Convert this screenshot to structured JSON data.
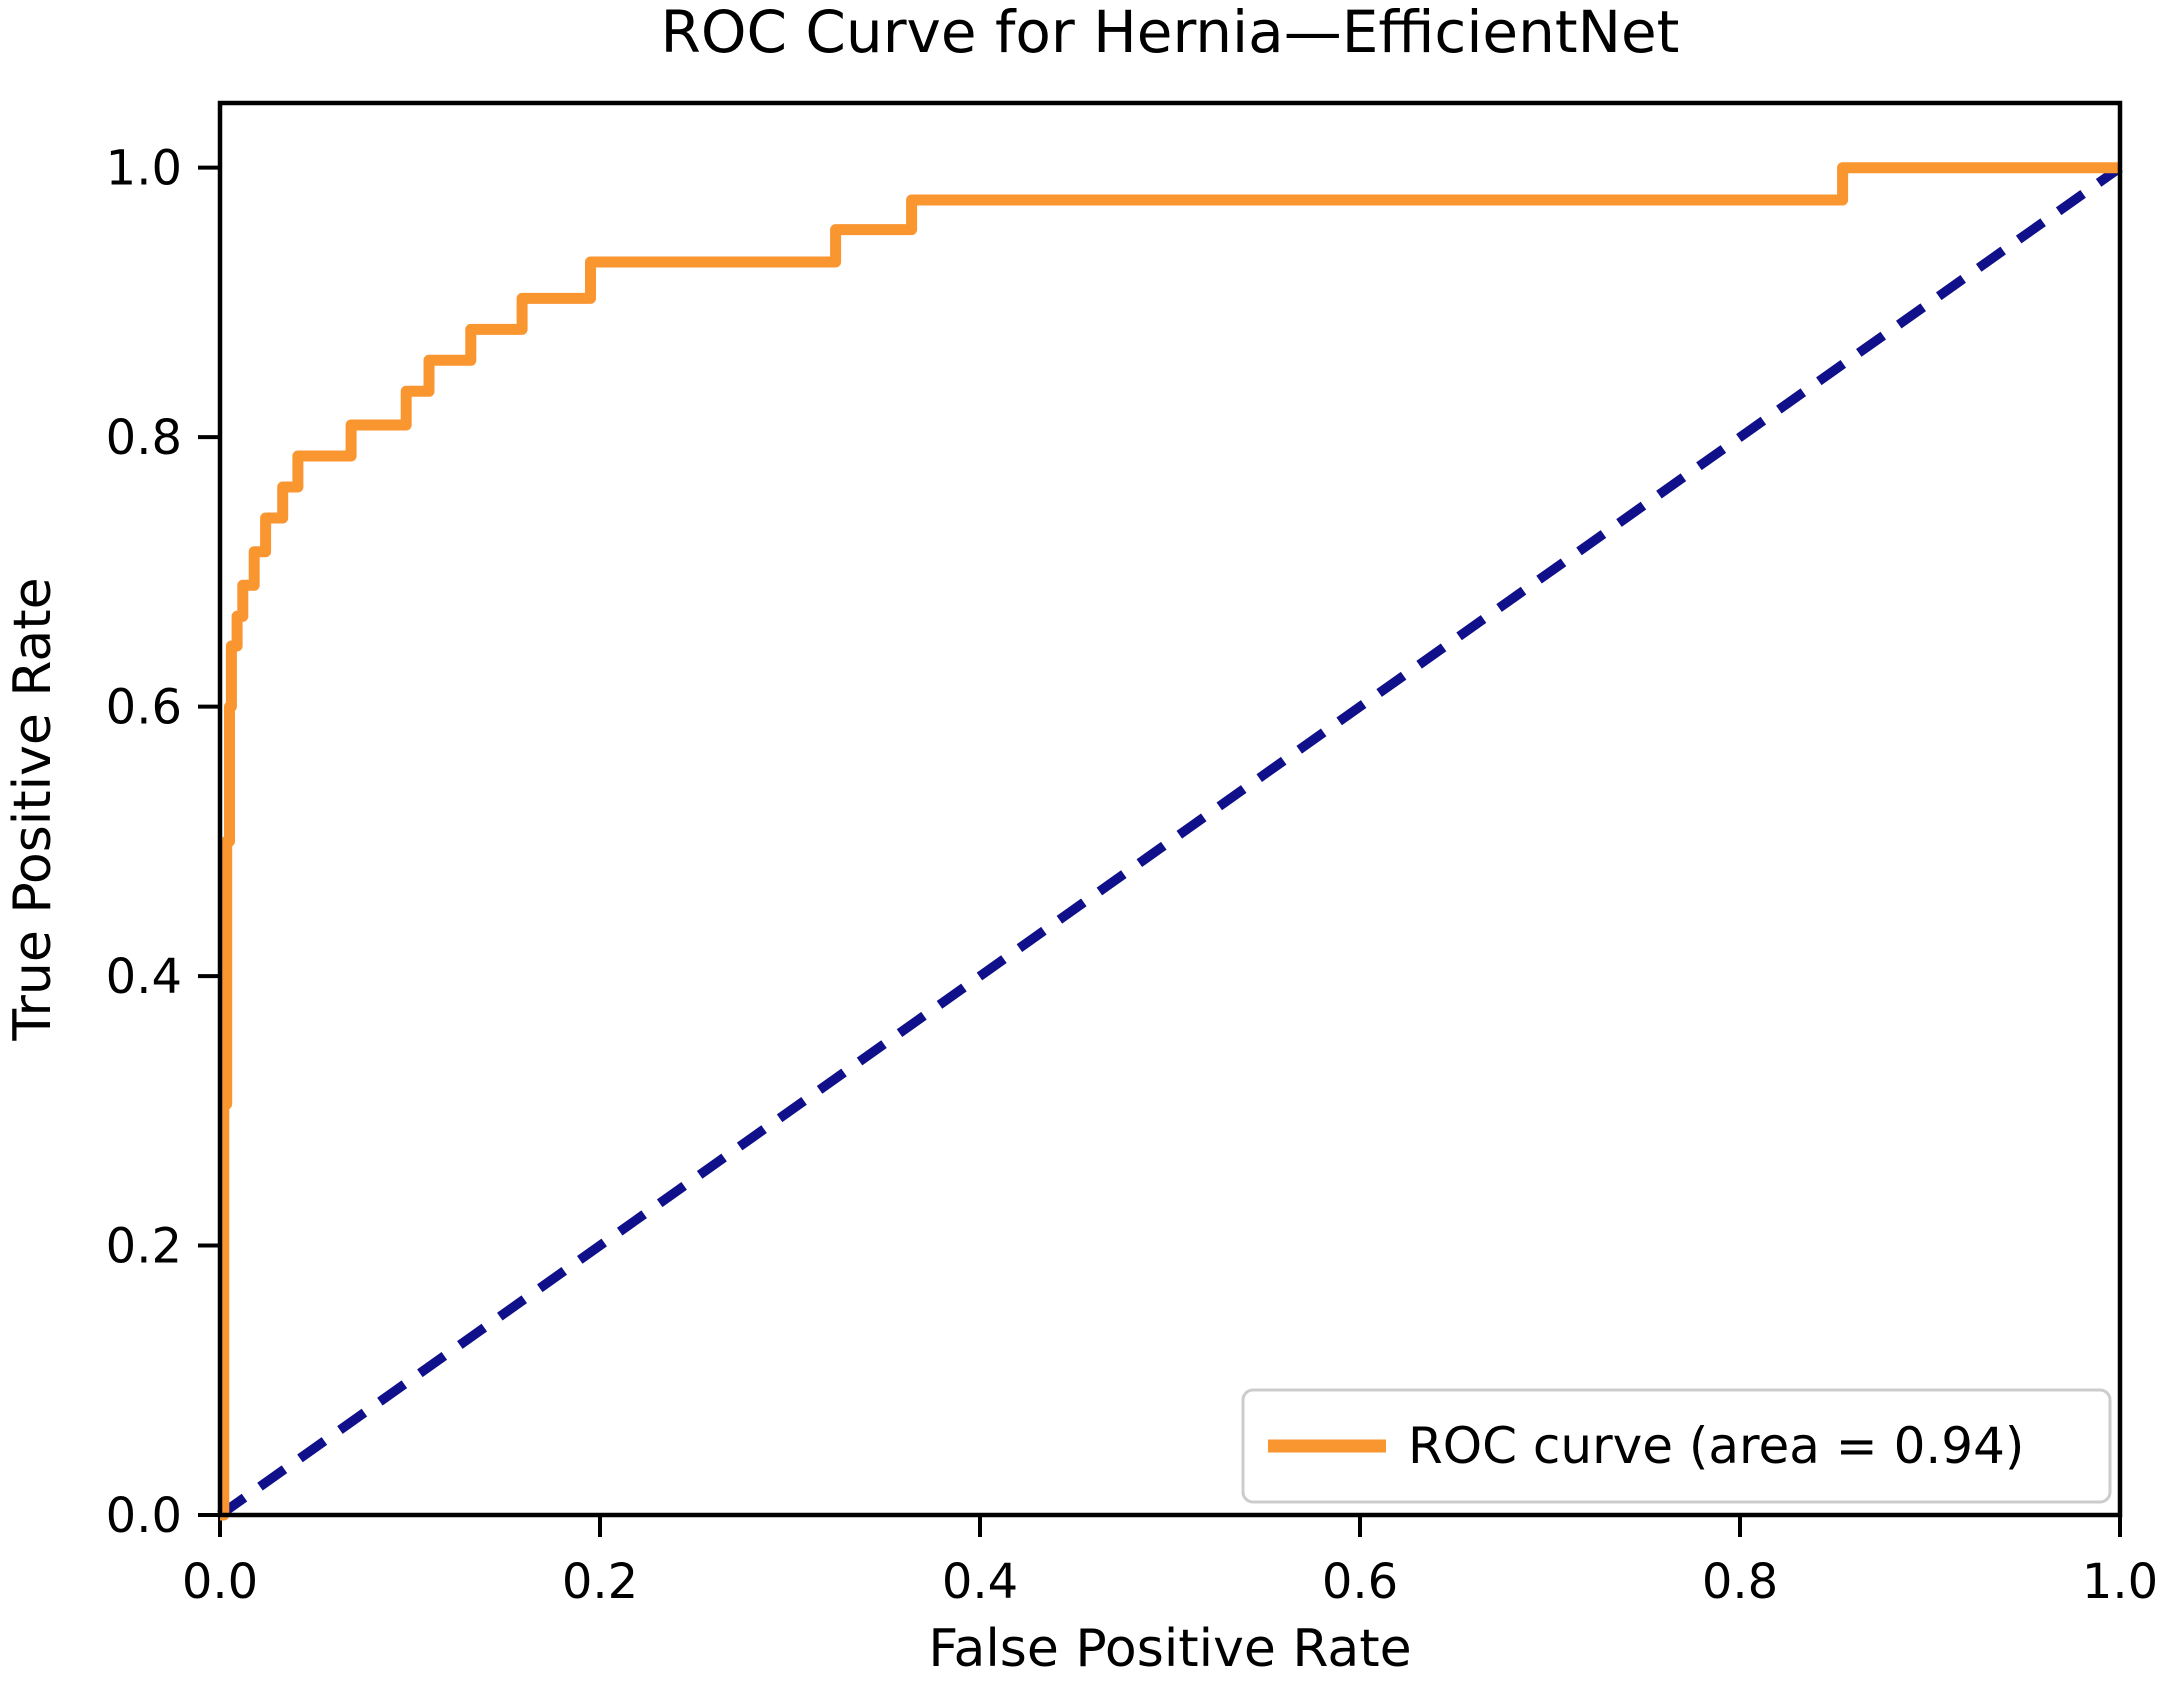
{
  "figure": {
    "title": "ROC Curve for Hernia—EfficientNet",
    "xlabel": "False Positive Rate",
    "ylabel": "True Positive Rate",
    "legend": {
      "label": "ROC curve (area = 0.94)",
      "position": "lower right"
    },
    "colors": {
      "roc_curve": "#FA9630",
      "chance_line": "#10108A",
      "axis": "#000000",
      "legend_border": "#CCCCCC",
      "background": "#FFFFFF"
    }
  },
  "chart_data": {
    "type": "line",
    "title": "ROC Curve for Hernia—EfficientNet",
    "xlabel": "False Positive Rate",
    "ylabel": "True Positive Rate",
    "xlim": [
      0.0,
      1.0
    ],
    "ylim": [
      0.0,
      1.048
    ],
    "x_ticks": [
      "0.0",
      "0.2",
      "0.4",
      "0.6",
      "0.8",
      "1.0"
    ],
    "y_ticks": [
      "0.0",
      "0.2",
      "0.4",
      "0.6",
      "0.8",
      "1.0"
    ],
    "grid": false,
    "legend_position": "lower right",
    "series": [
      {
        "name": "ROC curve (area = 0.94)",
        "auc": 0.94,
        "color": "#FA9630",
        "style": "solid",
        "points": [
          [
            0.0,
            0.0
          ],
          [
            0.002,
            0.0
          ],
          [
            0.002,
            0.305
          ],
          [
            0.0035,
            0.305
          ],
          [
            0.0035,
            0.5
          ],
          [
            0.005,
            0.5
          ],
          [
            0.005,
            0.6
          ],
          [
            0.006,
            0.6
          ],
          [
            0.006,
            0.645
          ],
          [
            0.009,
            0.645
          ],
          [
            0.009,
            0.667
          ],
          [
            0.012,
            0.667
          ],
          [
            0.012,
            0.69
          ],
          [
            0.018,
            0.69
          ],
          [
            0.018,
            0.715
          ],
          [
            0.024,
            0.715
          ],
          [
            0.024,
            0.74
          ],
          [
            0.033,
            0.74
          ],
          [
            0.033,
            0.763
          ],
          [
            0.041,
            0.763
          ],
          [
            0.041,
            0.786
          ],
          [
            0.069,
            0.786
          ],
          [
            0.069,
            0.809
          ],
          [
            0.098,
            0.809
          ],
          [
            0.098,
            0.834
          ],
          [
            0.11,
            0.834
          ],
          [
            0.11,
            0.857
          ],
          [
            0.132,
            0.857
          ],
          [
            0.132,
            0.88
          ],
          [
            0.159,
            0.88
          ],
          [
            0.159,
            0.903
          ],
          [
            0.195,
            0.903
          ],
          [
            0.195,
            0.93
          ],
          [
            0.324,
            0.93
          ],
          [
            0.324,
            0.954
          ],
          [
            0.364,
            0.954
          ],
          [
            0.364,
            0.976
          ],
          [
            0.854,
            0.976
          ],
          [
            0.854,
            1.0
          ],
          [
            1.0,
            1.0
          ]
        ]
      },
      {
        "name": "chance-diagonal",
        "color": "#10108A",
        "style": "dashed",
        "points": [
          [
            0.0,
            0.0
          ],
          [
            1.0,
            1.0
          ]
        ]
      }
    ]
  }
}
